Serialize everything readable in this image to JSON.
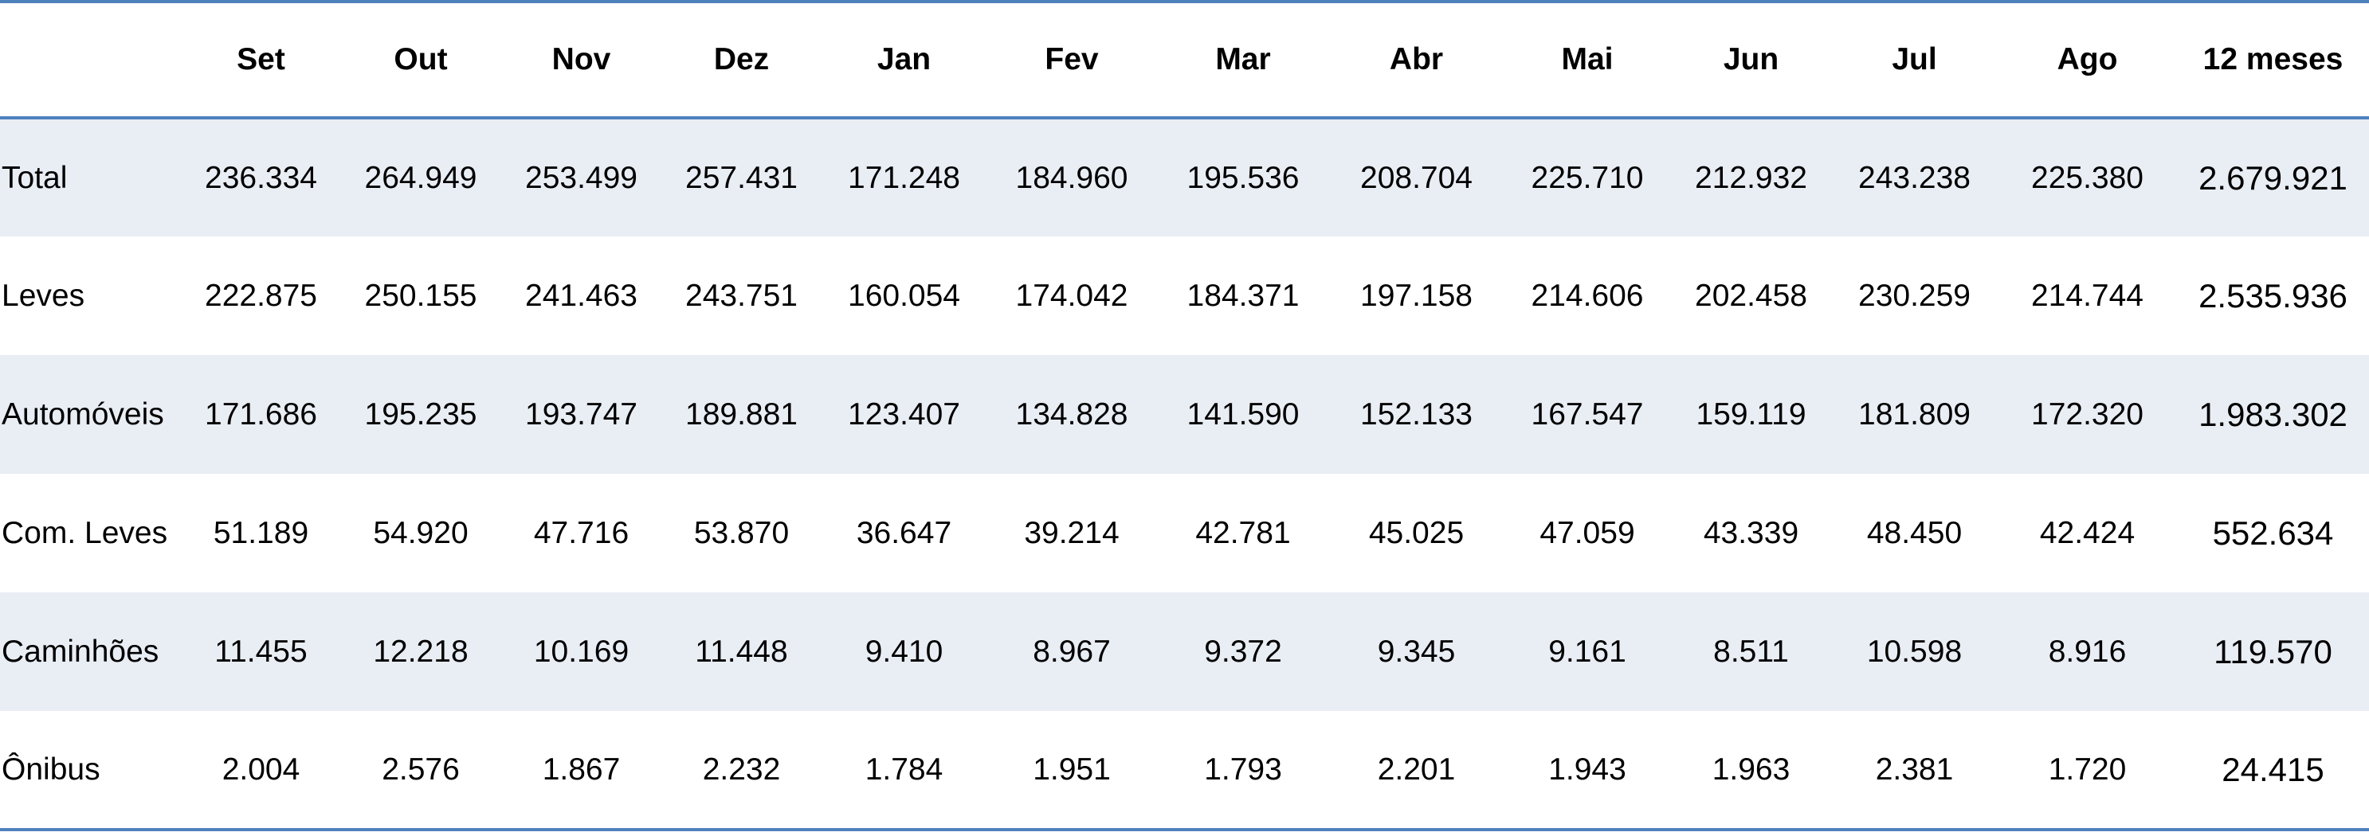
{
  "table": {
    "header": [
      "Set",
      "Out",
      "Nov",
      "Dez",
      "Jan",
      "Fev",
      "Mar",
      "Abr",
      "Mai",
      "Jun",
      "Jul",
      "Ago",
      "12 meses"
    ],
    "rows": [
      [
        "Total",
        "236.334",
        "264.949",
        "253.499",
        "257.431",
        "171.248",
        "184.960",
        "195.536",
        "208.704",
        "225.710",
        "212.932",
        "243.238",
        "225.380",
        "2.679.921"
      ],
      [
        "Leves",
        "222.875",
        "250.155",
        "241.463",
        "243.751",
        "160.054",
        "174.042",
        "184.371",
        "197.158",
        "214.606",
        "202.458",
        "230.259",
        "214.744",
        "2.535.936"
      ],
      [
        "Automóveis",
        "171.686",
        "195.235",
        "193.747",
        "189.881",
        "123.407",
        "134.828",
        "141.590",
        "152.133",
        "167.547",
        "159.119",
        "181.809",
        "172.320",
        "1.983.302"
      ],
      [
        "Com. Leves",
        "51.189",
        "54.920",
        "47.716",
        "53.870",
        "36.647",
        "39.214",
        "42.781",
        "45.025",
        "47.059",
        "43.339",
        "48.450",
        "42.424",
        "552.634"
      ],
      [
        "Caminhões",
        "11.455",
        "12.218",
        "10.169",
        "11.448",
        "9.410",
        "8.967",
        "9.372",
        "9.345",
        "9.161",
        "8.511",
        "10.598",
        "8.916",
        "119.570"
      ],
      [
        "Ônibus",
        "2.004",
        "2.576",
        "1.867",
        "2.232",
        "1.784",
        "1.951",
        "1.793",
        "2.201",
        "1.943",
        "1.963",
        "2.381",
        "1.720",
        "24.415"
      ]
    ]
  }
}
